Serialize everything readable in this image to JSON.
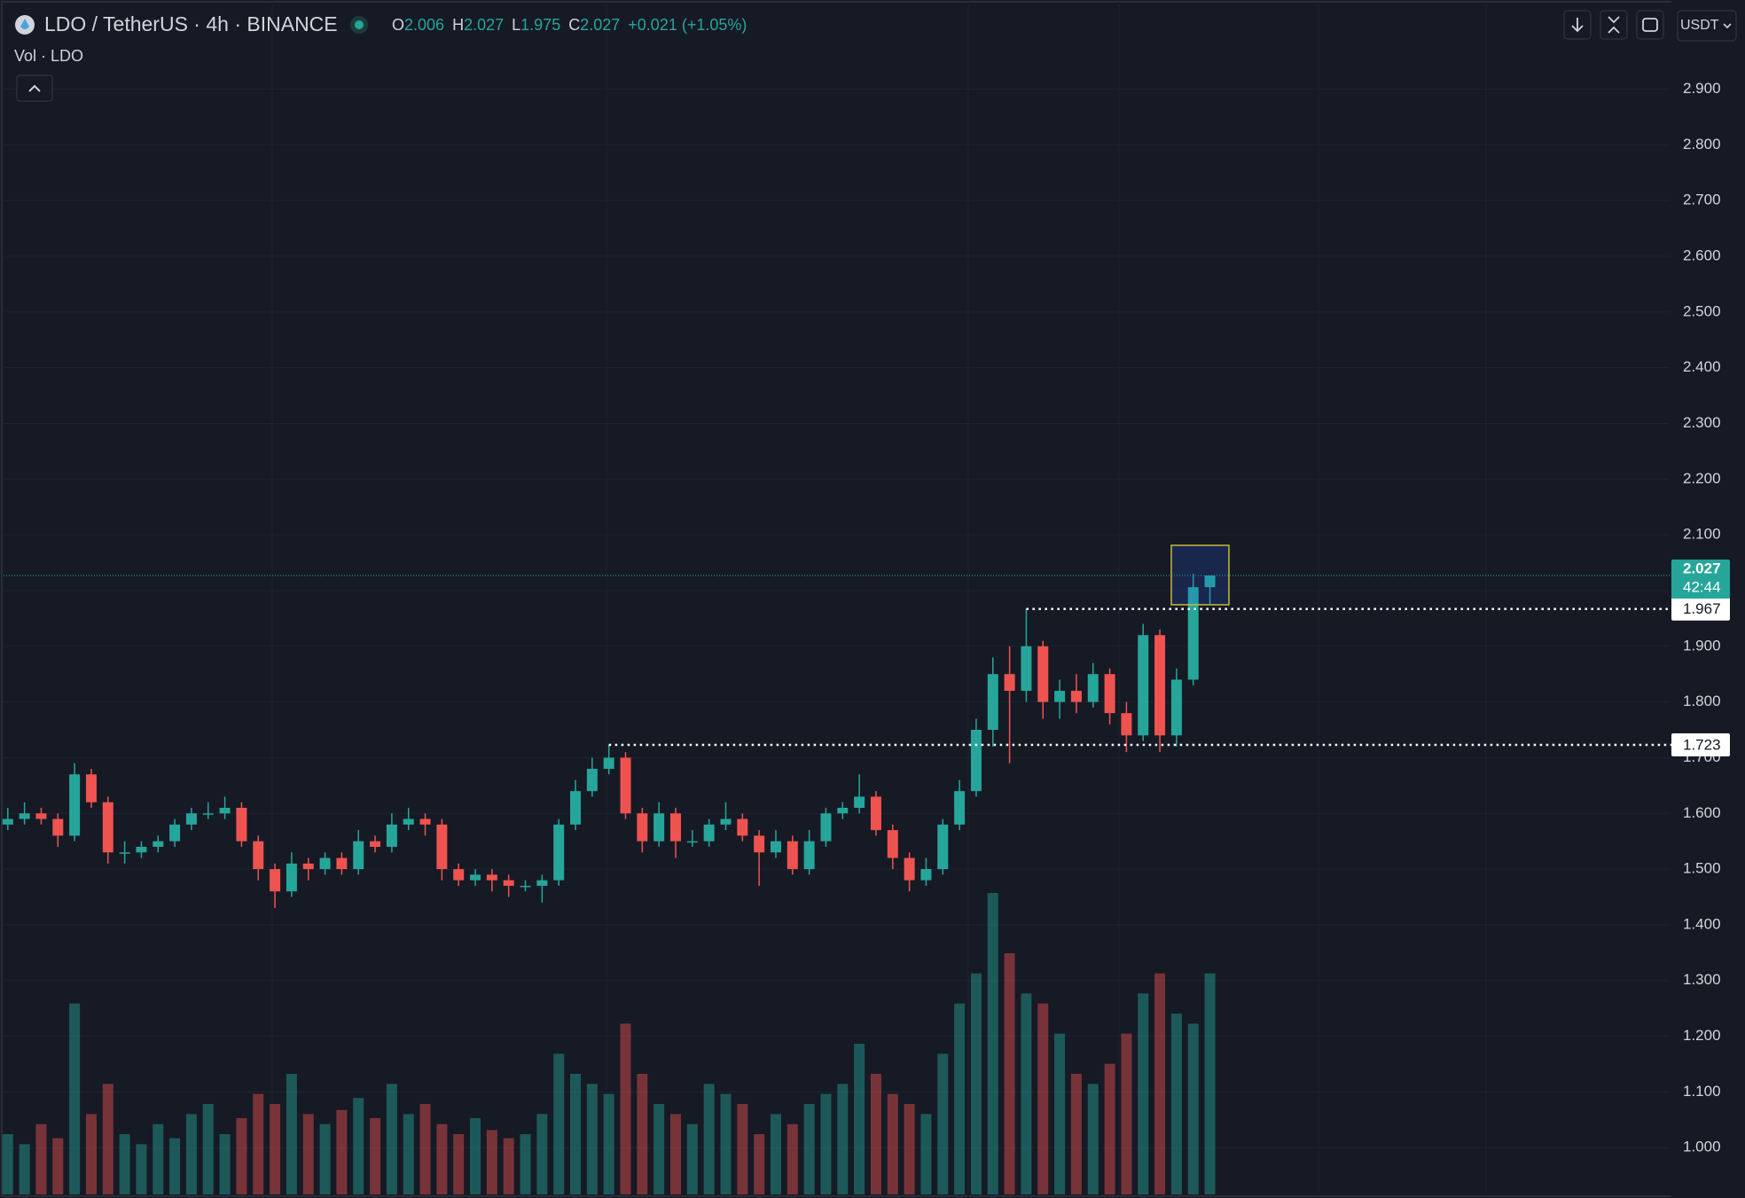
{
  "chart_data": {
    "type": "candlestick",
    "title": "LDO / TetherUS · 4h · BINANCE",
    "ohlc_labels": [
      "O",
      "H",
      "L",
      "C"
    ],
    "change": "+0.021 (+1.05%)",
    "volume_label": "Vol · LDO",
    "currency": "USDT",
    "countdown": "42:44",
    "up_color": "#26a69a",
    "down_color": "#ef5350",
    "grid": true,
    "ylim": [
      0.916,
      3.06
    ],
    "yticks": [
      {
        "value": 1.0,
        "label": "1.000"
      },
      {
        "value": 1.1,
        "label": "1.100"
      },
      {
        "value": 1.2,
        "label": "1.200"
      },
      {
        "value": 1.3,
        "label": "1.300"
      },
      {
        "value": 1.4,
        "label": "1.400"
      },
      {
        "value": 1.5,
        "label": "1.500"
      },
      {
        "value": 1.6,
        "label": "1.600"
      },
      {
        "value": 1.7,
        "label": "1.700"
      },
      {
        "value": 1.8,
        "label": "1.800"
      },
      {
        "value": 1.9,
        "label": "1.900"
      },
      {
        "value": 2.0,
        "label": "2.000"
      },
      {
        "value": 2.1,
        "label": "2.100"
      },
      {
        "value": 2.2,
        "label": "2.200"
      },
      {
        "value": 2.3,
        "label": "2.300"
      },
      {
        "value": 2.4,
        "label": "2.400"
      },
      {
        "value": 2.5,
        "label": "2.500"
      },
      {
        "value": 2.6,
        "label": "2.600"
      },
      {
        "value": 2.7,
        "label": "2.700"
      },
      {
        "value": 2.8,
        "label": "2.800"
      },
      {
        "value": 2.9,
        "label": "2.900"
      }
    ],
    "levels": [
      1.967,
      1.723
    ],
    "open": [
      1.58,
      1.59,
      1.6,
      1.59,
      1.56,
      1.67,
      1.62,
      1.53,
      1.53,
      1.54,
      1.55,
      1.58,
      1.6,
      1.6,
      1.61,
      1.55,
      1.5,
      1.46,
      1.51,
      1.5,
      1.52,
      1.5,
      1.55,
      1.54,
      1.58,
      1.59,
      1.58,
      1.5,
      1.48,
      1.49,
      1.48,
      1.47,
      1.47,
      1.48,
      1.58,
      1.64,
      1.68,
      1.7,
      1.6,
      1.55,
      1.6,
      1.55,
      1.55,
      1.58,
      1.59,
      1.56,
      1.53,
      1.55,
      1.5,
      1.55,
      1.6,
      1.61,
      1.63,
      1.57,
      1.52,
      1.48,
      1.5,
      1.58,
      1.64,
      1.75,
      1.85,
      1.82,
      1.9,
      1.8,
      1.82,
      1.8,
      1.85,
      1.78,
      1.74,
      1.92,
      1.74,
      1.84,
      2.006
    ],
    "high": [
      1.61,
      1.62,
      1.61,
      1.6,
      1.69,
      1.68,
      1.63,
      1.55,
      1.55,
      1.56,
      1.59,
      1.61,
      1.62,
      1.63,
      1.62,
      1.56,
      1.51,
      1.53,
      1.52,
      1.53,
      1.53,
      1.57,
      1.56,
      1.6,
      1.61,
      1.6,
      1.59,
      1.51,
      1.5,
      1.5,
      1.49,
      1.48,
      1.49,
      1.59,
      1.66,
      1.7,
      1.723,
      1.71,
      1.61,
      1.62,
      1.61,
      1.57,
      1.59,
      1.62,
      1.6,
      1.57,
      1.57,
      1.56,
      1.57,
      1.61,
      1.62,
      1.67,
      1.64,
      1.58,
      1.53,
      1.52,
      1.59,
      1.66,
      1.77,
      1.88,
      1.9,
      1.967,
      1.91,
      1.84,
      1.85,
      1.87,
      1.86,
      1.8,
      1.94,
      1.93,
      1.86,
      2.03,
      2.027
    ],
    "low": [
      1.57,
      1.58,
      1.58,
      1.54,
      1.55,
      1.61,
      1.51,
      1.51,
      1.52,
      1.53,
      1.54,
      1.57,
      1.59,
      1.59,
      1.54,
      1.48,
      1.43,
      1.45,
      1.48,
      1.49,
      1.49,
      1.49,
      1.53,
      1.53,
      1.57,
      1.56,
      1.48,
      1.47,
      1.47,
      1.46,
      1.45,
      1.46,
      1.44,
      1.47,
      1.57,
      1.63,
      1.67,
      1.59,
      1.53,
      1.54,
      1.52,
      1.54,
      1.54,
      1.57,
      1.55,
      1.47,
      1.52,
      1.49,
      1.49,
      1.54,
      1.59,
      1.6,
      1.56,
      1.5,
      1.46,
      1.47,
      1.49,
      1.57,
      1.63,
      1.72,
      1.69,
      1.8,
      1.77,
      1.77,
      1.78,
      1.79,
      1.76,
      1.71,
      1.73,
      1.71,
      1.72,
      1.83,
      1.975
    ],
    "close": [
      1.59,
      1.6,
      1.59,
      1.56,
      1.67,
      1.62,
      1.53,
      1.53,
      1.54,
      1.55,
      1.58,
      1.6,
      1.6,
      1.61,
      1.55,
      1.5,
      1.46,
      1.51,
      1.5,
      1.52,
      1.5,
      1.55,
      1.54,
      1.58,
      1.59,
      1.58,
      1.5,
      1.48,
      1.49,
      1.48,
      1.47,
      1.47,
      1.48,
      1.58,
      1.64,
      1.68,
      1.7,
      1.6,
      1.55,
      1.6,
      1.55,
      1.55,
      1.58,
      1.59,
      1.56,
      1.53,
      1.55,
      1.5,
      1.55,
      1.6,
      1.61,
      1.63,
      1.57,
      1.52,
      1.48,
      1.5,
      1.58,
      1.64,
      1.75,
      1.85,
      1.82,
      1.9,
      1.8,
      1.82,
      1.8,
      1.85,
      1.78,
      1.74,
      1.92,
      1.74,
      1.84,
      2.006,
      2.027
    ],
    "volume": [
      30,
      25,
      35,
      28,
      95,
      40,
      55,
      30,
      25,
      35,
      28,
      40,
      45,
      30,
      38,
      50,
      45,
      60,
      40,
      35,
      42,
      48,
      38,
      55,
      40,
      45,
      35,
      30,
      38,
      32,
      28,
      30,
      40,
      70,
      60,
      55,
      50,
      85,
      60,
      45,
      40,
      35,
      55,
      50,
      45,
      30,
      40,
      35,
      45,
      50,
      55,
      75,
      60,
      50,
      45,
      40,
      70,
      95,
      110,
      150,
      120,
      100,
      95,
      80,
      60,
      55,
      65,
      80,
      100,
      110,
      90,
      85,
      110
    ]
  }
}
